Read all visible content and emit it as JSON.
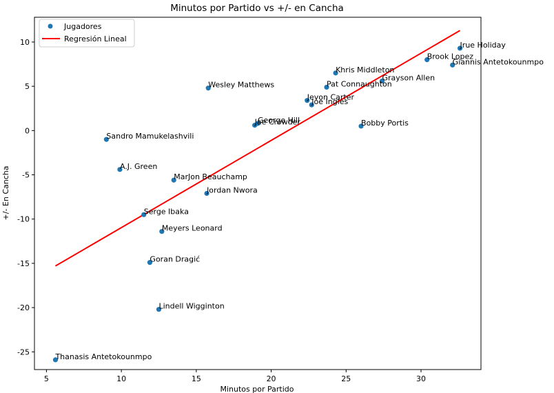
{
  "chart_data": {
    "type": "scatter",
    "title": "Minutos por Partido vs +/- en Cancha",
    "xlabel": "Minutos por Partido",
    "ylabel": "+/- En Cancha",
    "xlim": [
      4.2,
      34.0
    ],
    "ylim": [
      -27.0,
      12.8
    ],
    "xticks": [
      5,
      10,
      15,
      20,
      25,
      30
    ],
    "yticks": [
      -25,
      -20,
      -15,
      -10,
      -5,
      0,
      5,
      10
    ],
    "grid": false,
    "legend_position": "top-left",
    "colors": {
      "points": "#1f77b4",
      "regression": "#ff0000"
    },
    "series": [
      {
        "name": "Jugadores",
        "kind": "scatter",
        "points": [
          {
            "label": "Jrue Holiday",
            "x": 32.6,
            "y": 9.3
          },
          {
            "label": "Brook Lopez",
            "x": 30.4,
            "y": 8.0
          },
          {
            "label": "Giannis Antetokounmpo",
            "x": 32.1,
            "y": 7.4
          },
          {
            "label": "Khris Middleton",
            "x": 24.3,
            "y": 6.5
          },
          {
            "label": "Grayson Allen",
            "x": 27.4,
            "y": 5.6
          },
          {
            "label": "Pat Connaughton",
            "x": 23.7,
            "y": 4.9
          },
          {
            "label": "Wesley Matthews",
            "x": 15.8,
            "y": 4.8
          },
          {
            "label": "Jevon Carter",
            "x": 22.4,
            "y": 3.4
          },
          {
            "label": "Joe Ingles",
            "x": 22.7,
            "y": 2.9
          },
          {
            "label": "George Hill",
            "x": 19.1,
            "y": 0.8
          },
          {
            "label": "Jae Crowder",
            "x": 18.9,
            "y": 0.6
          },
          {
            "label": "Bobby Portis",
            "x": 26.0,
            "y": 0.5
          },
          {
            "label": "Sandro Mamukelashvili",
            "x": 9.0,
            "y": -1.0
          },
          {
            "label": "A.J. Green",
            "x": 9.9,
            "y": -4.4
          },
          {
            "label": "MarJon Beauchamp",
            "x": 13.5,
            "y": -5.6
          },
          {
            "label": "Jordan Nwora",
            "x": 15.7,
            "y": -7.1
          },
          {
            "label": "Serge Ibaka",
            "x": 11.5,
            "y": -9.5
          },
          {
            "label": "Meyers Leonard",
            "x": 12.7,
            "y": -11.4
          },
          {
            "label": "Goran Dragić",
            "x": 11.9,
            "y": -14.9
          },
          {
            "label": "Lindell Wigginton",
            "x": 12.5,
            "y": -20.2
          },
          {
            "label": "Thanasis Antetokounmpo",
            "x": 5.6,
            "y": -25.9
          }
        ]
      },
      {
        "name": "Regresión Lineal",
        "kind": "line",
        "points": [
          {
            "x": 5.6,
            "y": -15.3
          },
          {
            "x": 32.6,
            "y": 11.3
          }
        ]
      }
    ]
  }
}
